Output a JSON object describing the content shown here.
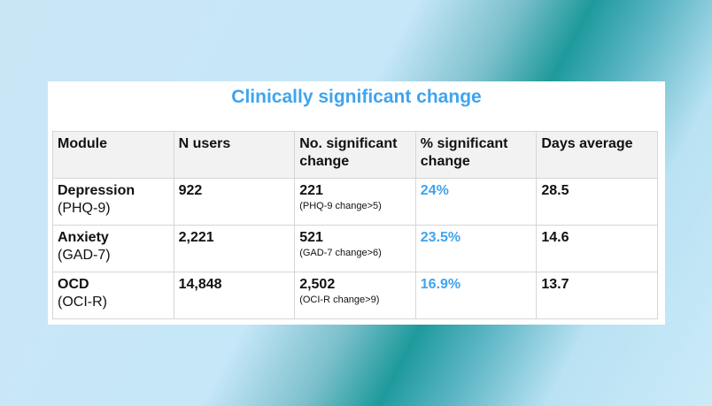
{
  "title": "Clinically significant change",
  "colors": {
    "accent": "#3fa4ef"
  },
  "headers": [
    "Module",
    "N users",
    "No. significant change",
    "% significant change",
    "Days average"
  ],
  "rows": [
    {
      "module": "Depression",
      "scale": "(PHQ-9)",
      "n_users": "922",
      "num_sig": "221",
      "note": "(PHQ-9 change>5)",
      "pct": "24%",
      "days": "28.5"
    },
    {
      "module": "Anxiety",
      "scale": "(GAD-7)",
      "n_users": "2,221",
      "num_sig": "521",
      "note": "(GAD-7 change>6)",
      "pct": "23.5%",
      "days": "14.6"
    },
    {
      "module": "OCD",
      "scale": "(OCI-R)",
      "n_users": "14,848",
      "num_sig": "2,502",
      "note": "(OCI-R change>9)",
      "pct": "16.9%",
      "days": "13.7"
    }
  ]
}
